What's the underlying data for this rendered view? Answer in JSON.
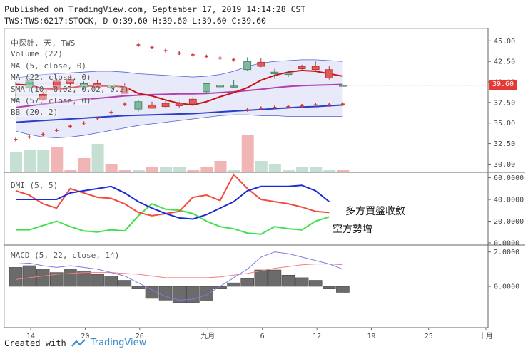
{
  "header": {
    "line1": "Published on TradingView.com, September 17, 2019 14:14:28 CST",
    "line2": "TWS:TWS:6217:STOCK, D O:39.60 H:39.60 L:39.60 C:39.60"
  },
  "main_pane": {
    "legend": [
      "中探針, 天, TWS",
      "Volume (22)",
      "MA (5, close, 0)",
      "MA (22, close, 0)",
      "SMA (10, 0.02, 0.02, 0.2)",
      "MA (57, close, 0)",
      "BB (20, 2)"
    ],
    "price_label": "39.60",
    "y_ticks": [
      "45.00",
      "42.50",
      "40.00",
      "37.50",
      "35.00",
      "32.50",
      "30.00"
    ]
  },
  "dmi_pane": {
    "legend": "DMI (5, 5)",
    "y_ticks": [
      "60.0000",
      "40.0000",
      "20.0000",
      "0.0000"
    ],
    "annotations": [
      "多方買盤收斂",
      "空方勢增"
    ]
  },
  "macd_pane": {
    "legend": "MACD (5, 22, close, 14)",
    "y_ticks": [
      "2.0000",
      "0.0000"
    ]
  },
  "x_ticks": [
    "14",
    "20",
    "26",
    "九月",
    "6",
    "12",
    "19",
    "25",
    "十月"
  ],
  "footer": {
    "created_with": "Created with",
    "brand": "TradingView"
  },
  "colors": {
    "up": "#7fb89b",
    "down": "#e05a5a",
    "ma5": "#cc1111",
    "ma22": "#2a3fc7",
    "sma": "#b040b0",
    "bb": "#4b5fd6",
    "plus": "#d23c3c",
    "green": "#3fe04a"
  },
  "chart_data": [
    {
      "type": "candlestick",
      "title": "中探針, 天, TWS",
      "ylim": [
        29,
        46.5
      ],
      "candles": [
        {
          "o": 37.9,
          "h": 40.0,
          "l": 37.6,
          "c": 37.9
        },
        {
          "o": 39.3,
          "h": 40.5,
          "l": 38.8,
          "c": 40.2
        },
        {
          "o": 38.5,
          "h": 38.8,
          "l": 37.7,
          "c": 37.9
        },
        {
          "o": 40.1,
          "h": 40.5,
          "l": 38.8,
          "c": 39.0
        },
        {
          "o": 40.3,
          "h": 40.9,
          "l": 39.5,
          "c": 39.8
        },
        {
          "o": 39.4,
          "h": 40.1,
          "l": 39.0,
          "c": 39.8
        },
        {
          "o": 39.8,
          "h": 40.2,
          "l": 39.3,
          "c": 39.3
        },
        {
          "o": 39.3,
          "h": 39.6,
          "l": 38.6,
          "c": 39.6
        },
        {
          "o": 39.3,
          "h": 39.8,
          "l": 38.7,
          "c": 38.6
        },
        {
          "o": 36.7,
          "h": 37.8,
          "l": 36.4,
          "c": 37.6
        },
        {
          "o": 37.2,
          "h": 37.6,
          "l": 36.8,
          "c": 36.8
        },
        {
          "o": 37.4,
          "h": 37.7,
          "l": 36.9,
          "c": 37.0
        },
        {
          "o": 37.4,
          "h": 37.6,
          "l": 36.9,
          "c": 37.1
        },
        {
          "o": 37.9,
          "h": 38.2,
          "l": 37.2,
          "c": 37.3
        },
        {
          "o": 38.8,
          "h": 39.9,
          "l": 38.7,
          "c": 39.8
        },
        {
          "o": 39.4,
          "h": 39.7,
          "l": 39.2,
          "c": 39.6
        },
        {
          "o": 39.5,
          "h": 40.2,
          "l": 39.3,
          "c": 39.5
        },
        {
          "o": 41.5,
          "h": 43.0,
          "l": 41.3,
          "c": 42.5
        },
        {
          "o": 42.4,
          "h": 42.9,
          "l": 41.8,
          "c": 41.9
        },
        {
          "o": 41.0,
          "h": 41.6,
          "l": 40.4,
          "c": 41.2
        },
        {
          "o": 40.9,
          "h": 41.4,
          "l": 40.6,
          "c": 41.1
        },
        {
          "o": 41.9,
          "h": 42.1,
          "l": 41.5,
          "c": 41.6
        },
        {
          "o": 41.9,
          "h": 42.5,
          "l": 41.3,
          "c": 41.5
        },
        {
          "o": 41.5,
          "h": 41.9,
          "l": 40.3,
          "c": 40.5
        },
        {
          "o": 39.6,
          "h": 39.6,
          "l": 39.6,
          "c": 39.6
        }
      ],
      "ma5": [
        39.7,
        39.6,
        39.2,
        39.1,
        39.3,
        39.5,
        39.5,
        39.5,
        39.4,
        38.6,
        38.3,
        37.8,
        37.4,
        37.2,
        37.6,
        38.2,
        38.7,
        39.3,
        40.2,
        40.8,
        41.2,
        41.4,
        41.3,
        41.0,
        40.7
      ],
      "ma22": [
        35.1,
        35.2,
        35.3,
        35.4,
        35.5,
        35.6,
        35.7,
        35.8,
        35.9,
        35.95,
        36.0,
        36.05,
        36.1,
        36.15,
        36.25,
        36.35,
        36.45,
        36.55,
        36.65,
        36.75,
        36.85,
        36.95,
        37.0,
        37.1,
        37.2
      ],
      "sma_line": [
        36.9,
        37.1,
        37.3,
        37.5,
        37.7,
        37.9,
        38.0,
        38.15,
        38.3,
        38.4,
        38.45,
        38.5,
        38.55,
        38.55,
        38.6,
        38.7,
        38.8,
        38.95,
        39.1,
        39.3,
        39.45,
        39.55,
        39.6,
        39.65,
        39.7
      ],
      "bb_upper": [
        40.5,
        40.7,
        40.9,
        41.0,
        41.1,
        41.2,
        41.3,
        41.3,
        41.2,
        41.0,
        40.9,
        40.8,
        40.7,
        40.6,
        40.7,
        40.9,
        41.3,
        41.9,
        42.3,
        42.5,
        42.6,
        42.7,
        42.7,
        42.6,
        42.5
      ],
      "bb_lower": [
        34.0,
        33.6,
        33.3,
        33.2,
        33.3,
        33.5,
        33.8,
        34.1,
        34.4,
        34.7,
        34.9,
        35.1,
        35.3,
        35.5,
        35.7,
        35.9,
        36.0,
        36.0,
        35.9,
        35.9,
        35.8,
        35.8,
        35.8,
        35.8,
        35.8
      ],
      "sar_points": [
        33.0,
        33.3,
        33.6,
        34.1,
        34.6,
        35.0,
        35.6,
        36.3,
        37.3,
        44.5,
        44.2,
        43.8,
        43.5,
        43.3,
        43.1,
        42.9,
        42.7,
        36.6,
        36.8,
        36.9,
        37.0,
        37.1,
        37.2,
        37.2,
        37.3
      ],
      "volume": [
        7,
        8,
        8,
        9,
        1,
        5,
        10,
        3,
        1,
        1,
        2,
        2,
        2,
        1,
        2,
        4,
        1,
        13,
        4,
        3,
        1,
        2,
        2,
        1,
        1
      ],
      "volume_dir": [
        "up",
        "up",
        "up",
        "down",
        "down",
        "down",
        "up",
        "down",
        "down",
        "up",
        "down",
        "up",
        "up",
        "down",
        "down",
        "down",
        "up",
        "down",
        "up",
        "up",
        "up",
        "up",
        "up",
        "up",
        "down"
      ]
    },
    {
      "type": "line",
      "title": "DMI (5, 5)",
      "ylim": [
        -2,
        65
      ],
      "series": [
        {
          "name": "DI+ (green)",
          "values": [
            12,
            12,
            16,
            20,
            15,
            11,
            10,
            12,
            11,
            25,
            36,
            31,
            30,
            27,
            20,
            15,
            13,
            9,
            8,
            15,
            13,
            12,
            20,
            24
          ]
        },
        {
          "name": "DI- (red)",
          "values": [
            48,
            44,
            36,
            32,
            50,
            46,
            42,
            41,
            36,
            28,
            25,
            27,
            29,
            42,
            44,
            39,
            63,
            50,
            40,
            38,
            36,
            33,
            29,
            28
          ]
        },
        {
          "name": "ADX (blue)",
          "values": [
            40,
            40,
            40,
            40,
            46,
            48,
            50,
            52,
            46,
            38,
            32,
            27,
            23,
            22,
            26,
            32,
            38,
            48,
            52,
            52,
            52,
            53,
            48,
            38
          ]
        }
      ]
    },
    {
      "type": "bar",
      "title": "MACD (5, 22, close, 14)",
      "ylim": [
        -2.4,
        2.4
      ],
      "histogram": [
        1.1,
        1.2,
        1.0,
        0.8,
        1.0,
        0.9,
        0.7,
        0.6,
        0.35,
        -0.15,
        -0.7,
        -0.8,
        -0.95,
        -0.95,
        -0.85,
        -0.15,
        0.2,
        0.45,
        0.95,
        0.95,
        0.65,
        0.5,
        0.35,
        -0.15,
        -0.35
      ],
      "macd": [
        1.3,
        1.35,
        1.2,
        1.1,
        1.2,
        1.1,
        1.0,
        0.8,
        0.6,
        0.2,
        -0.2,
        -0.6,
        -0.8,
        -0.75,
        -0.5,
        0.0,
        0.5,
        1.0,
        1.7,
        2.0,
        1.9,
        1.7,
        1.5,
        1.3,
        1.0
      ],
      "signal": [
        0.4,
        0.5,
        0.6,
        0.7,
        0.75,
        0.8,
        0.8,
        0.8,
        0.75,
        0.7,
        0.6,
        0.5,
        0.5,
        0.5,
        0.5,
        0.55,
        0.65,
        0.75,
        0.9,
        1.05,
        1.15,
        1.25,
        1.3,
        1.3,
        1.25
      ]
    }
  ]
}
